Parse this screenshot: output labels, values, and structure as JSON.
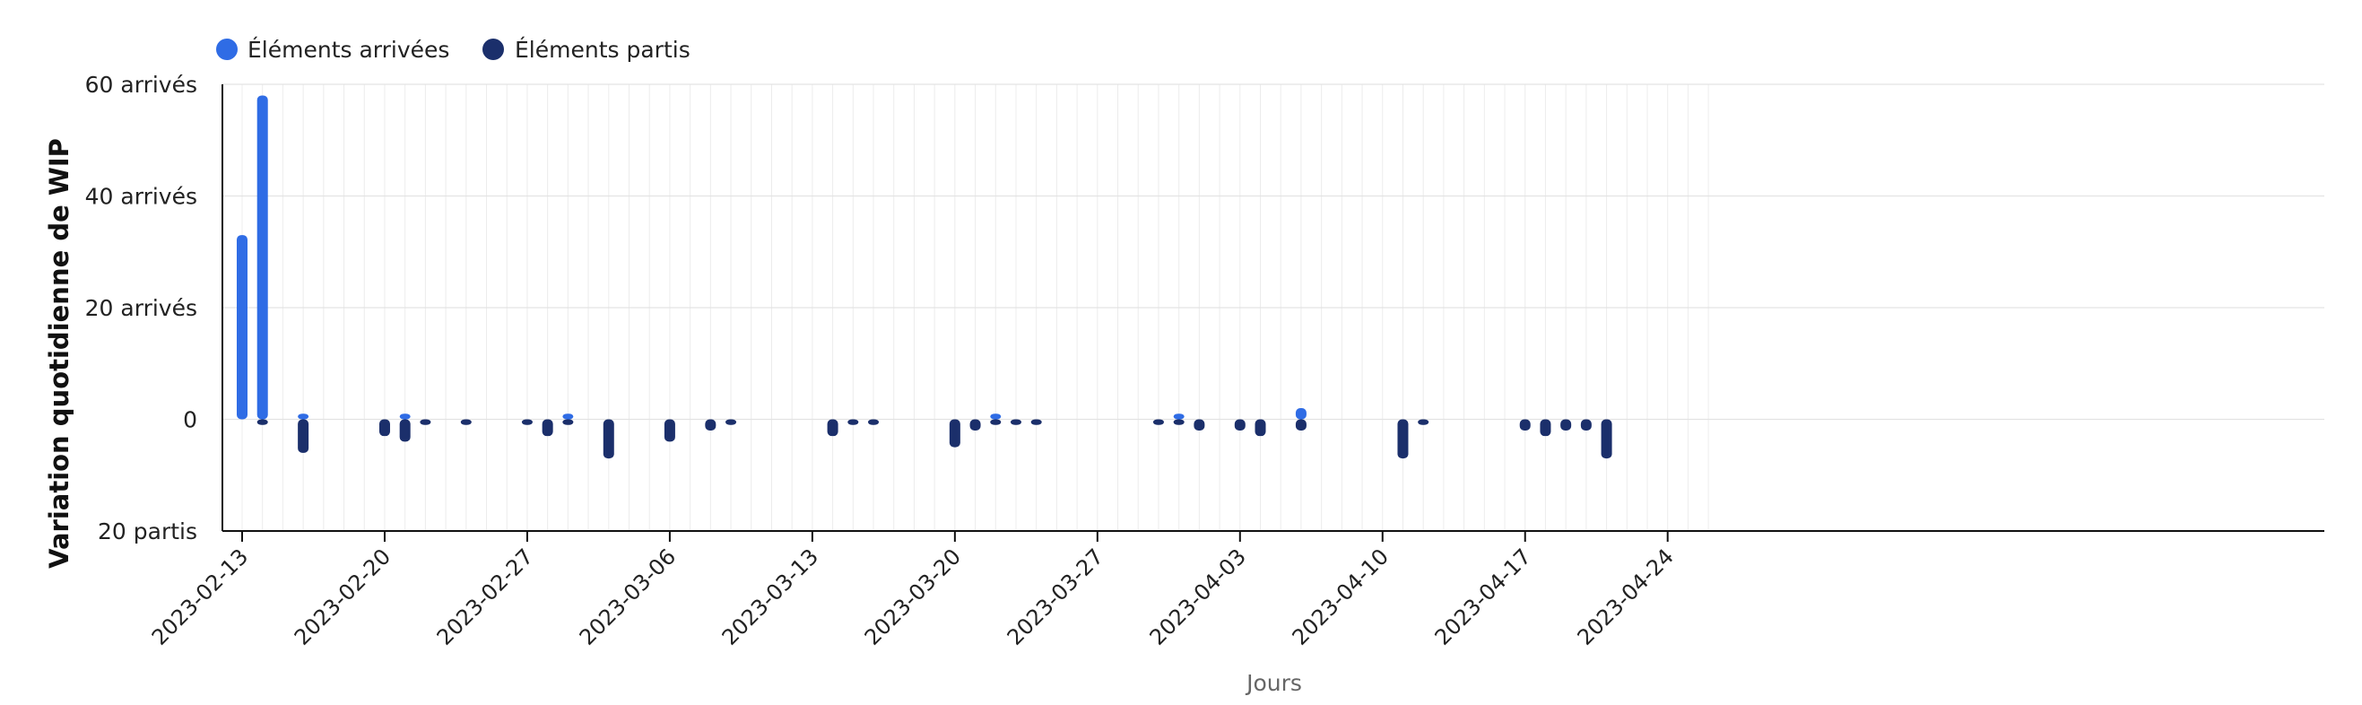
{
  "chart_data": {
    "type": "bar",
    "ylabel": "Variation quotidienne de WIP",
    "xlabel": "Jours",
    "ylim": [
      -20,
      60
    ],
    "yticks": [
      {
        "value": 60,
        "label": "60 arrivés"
      },
      {
        "value": 40,
        "label": "40 arrivés"
      },
      {
        "value": 20,
        "label": "20 arrivés"
      },
      {
        "value": 0,
        "label": "0"
      },
      {
        "value": -20,
        "label": "20 partis"
      }
    ],
    "x_start": "2023-02-13",
    "x_end": "2023-04-26",
    "xticks": [
      "2023-02-13",
      "2023-02-20",
      "2023-02-27",
      "2023-03-06",
      "2023-03-13",
      "2023-03-20",
      "2023-03-27",
      "2023-04-03",
      "2023-04-10",
      "2023-04-17",
      "2023-04-24"
    ],
    "grid": true,
    "legend_position": "top-left",
    "series": [
      {
        "name": "Éléments arrivées",
        "color": "#2f6ce5",
        "points": [
          {
            "date": "2023-02-13",
            "value": 33
          },
          {
            "date": "2023-02-14",
            "value": 58
          },
          {
            "date": "2023-02-16",
            "value": 1
          },
          {
            "date": "2023-02-21",
            "value": 1
          },
          {
            "date": "2023-03-01",
            "value": 1
          },
          {
            "date": "2023-03-22",
            "value": 1
          },
          {
            "date": "2023-03-31",
            "value": 1
          },
          {
            "date": "2023-04-06",
            "value": 2
          }
        ]
      },
      {
        "name": "Éléments partis",
        "color": "#1b2f6b",
        "points": [
          {
            "date": "2023-02-14",
            "value": -1
          },
          {
            "date": "2023-02-16",
            "value": -6
          },
          {
            "date": "2023-02-20",
            "value": -3
          },
          {
            "date": "2023-02-21",
            "value": -4
          },
          {
            "date": "2023-02-22",
            "value": -1
          },
          {
            "date": "2023-02-24",
            "value": -1
          },
          {
            "date": "2023-02-27",
            "value": -1
          },
          {
            "date": "2023-02-28",
            "value": -3
          },
          {
            "date": "2023-03-01",
            "value": -1
          },
          {
            "date": "2023-03-03",
            "value": -7
          },
          {
            "date": "2023-03-06",
            "value": -4
          },
          {
            "date": "2023-03-08",
            "value": -2
          },
          {
            "date": "2023-03-09",
            "value": -1
          },
          {
            "date": "2023-03-14",
            "value": -3
          },
          {
            "date": "2023-03-15",
            "value": -1
          },
          {
            "date": "2023-03-16",
            "value": -1
          },
          {
            "date": "2023-03-20",
            "value": -5
          },
          {
            "date": "2023-03-21",
            "value": -2
          },
          {
            "date": "2023-03-22",
            "value": -1
          },
          {
            "date": "2023-03-23",
            "value": -1
          },
          {
            "date": "2023-03-24",
            "value": -1
          },
          {
            "date": "2023-03-30",
            "value": -1
          },
          {
            "date": "2023-03-31",
            "value": -1
          },
          {
            "date": "2023-04-01",
            "value": -2
          },
          {
            "date": "2023-04-03",
            "value": -2
          },
          {
            "date": "2023-04-04",
            "value": -3
          },
          {
            "date": "2023-04-06",
            "value": -2
          },
          {
            "date": "2023-04-11",
            "value": -7
          },
          {
            "date": "2023-04-12",
            "value": -1
          },
          {
            "date": "2023-04-17",
            "value": -2
          },
          {
            "date": "2023-04-18",
            "value": -3
          },
          {
            "date": "2023-04-19",
            "value": -2
          },
          {
            "date": "2023-04-20",
            "value": -2
          },
          {
            "date": "2023-04-21",
            "value": -7
          }
        ]
      }
    ]
  }
}
